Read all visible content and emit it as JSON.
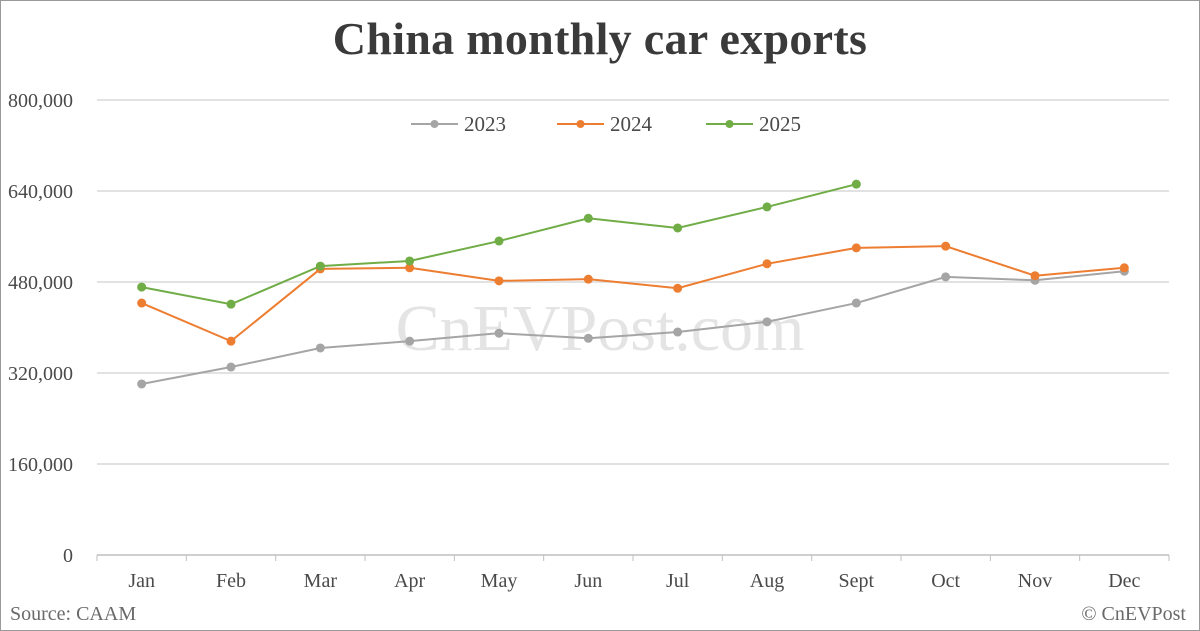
{
  "chart_data": {
    "type": "line",
    "title": "China monthly car exports",
    "xlabel": "",
    "ylabel": "",
    "categories": [
      "Jan",
      "Feb",
      "Mar",
      "Apr",
      "May",
      "Jun",
      "Jul",
      "Aug",
      "Sept",
      "Oct",
      "Nov",
      "Dec"
    ],
    "yticks": [
      0,
      160000,
      320000,
      480000,
      640000,
      800000
    ],
    "ytick_labels": [
      "0",
      "160,000",
      "320,000",
      "480,000",
      "640,000",
      "800,000"
    ],
    "ylim": [
      0,
      800000
    ],
    "grid": true,
    "legend_position": "top-center",
    "series": [
      {
        "name": "2023",
        "color": "#a5a5a5",
        "values": [
          300700,
          330500,
          364000,
          376000,
          390000,
          381000,
          392000,
          410000,
          443000,
          489000,
          483000,
          499000
        ]
      },
      {
        "name": "2024",
        "color": "#ed7d31",
        "values": [
          443000,
          376000,
          503000,
          505000,
          482000,
          485000,
          469000,
          512000,
          540000,
          543000,
          491000,
          505000
        ]
      },
      {
        "name": "2025",
        "color": "#70ad47",
        "values": [
          471000,
          441000,
          508000,
          517000,
          552000,
          592000,
          575000,
          612000,
          652000,
          null,
          null,
          null
        ]
      }
    ],
    "annotations": [
      "CnEVPost.com"
    ]
  },
  "header": {
    "title": "China monthly car exports"
  },
  "legend": {
    "items": [
      {
        "label": "2023",
        "color": "#a5a5a5"
      },
      {
        "label": "2024",
        "color": "#ed7d31"
      },
      {
        "label": "2025",
        "color": "#70ad47"
      }
    ]
  },
  "watermark": "CnEVPost.com",
  "footer": {
    "source": "Source: CAAM",
    "credit": "© CnEVPost"
  }
}
